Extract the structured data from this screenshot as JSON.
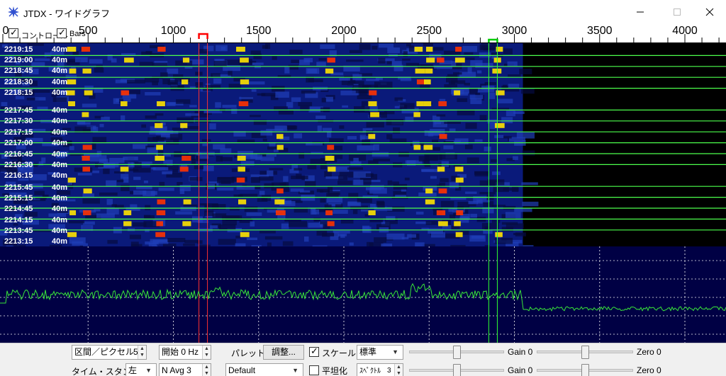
{
  "window": {
    "title": "JTDX - ワイドグラフ",
    "icon": "jtdx-star-icon",
    "minimize_icon": "minimize-icon",
    "maximize_icon": "maximize-icon",
    "close_icon": "close-icon"
  },
  "ruler": {
    "ticks": [
      "0",
      "500",
      "1000",
      "1500",
      "2000",
      "2500",
      "3000",
      "3500",
      "4000"
    ],
    "control_checkbox_label": "コントロール",
    "bars_checkbox_label": "Bars",
    "control_checked": true,
    "bars_checked": true,
    "rx_marker_color": "#ff0000",
    "tx_marker_color": "#00cc00"
  },
  "waterfall": {
    "rows": [
      {
        "time": "2219:15",
        "band": "40m"
      },
      {
        "time": "2219:00",
        "band": "40m"
      },
      {
        "time": "2218:45",
        "band": "40m"
      },
      {
        "time": "2218:30",
        "band": "40m"
      },
      {
        "time": "2218:15",
        "band": "40m"
      },
      {
        "time": "2217:45",
        "band": "40m"
      },
      {
        "time": "2217:30",
        "band": "40m"
      },
      {
        "time": "2217:15",
        "band": "40m"
      },
      {
        "time": "2217:00",
        "band": "40m"
      },
      {
        "time": "2216:45",
        "band": "40m"
      },
      {
        "time": "2216:30",
        "band": "40m"
      },
      {
        "time": "2216:15",
        "band": "40m"
      },
      {
        "time": "2215:45",
        "band": "40m"
      },
      {
        "time": "2215:15",
        "band": "40m"
      },
      {
        "time": "2214:45",
        "band": "40m"
      },
      {
        "time": "2214:15",
        "band": "40m"
      },
      {
        "time": "2213:45",
        "band": "40m"
      },
      {
        "time": "2213:15",
        "band": "40m"
      }
    ],
    "colors": {
      "background": "#0a1a7a",
      "signal_hot": "#ff3300",
      "signal_warm": "#ffe400",
      "separator": "#4cff4c"
    }
  },
  "spectrum": {
    "colors": {
      "background": "#000044",
      "trace": "#39e639",
      "grid": "#ffffff"
    }
  },
  "controls": {
    "interval_pixel": "区間／ピクセル",
    "interval_pixel_value": "5",
    "start_label": "開始 0 Hz",
    "palette_label": "パレット",
    "adjust_button": "調整...",
    "scale_label": "スケール",
    "scale_checked": true,
    "standard_select": "標準",
    "gain_top": "Gain 0",
    "zero_top": "Zero 0",
    "timestamp_label": "タイム・スタンプ",
    "timestamp_select": "左",
    "navg_label": "N Avg 3",
    "default_select": "Default",
    "flatten_label": "平坦化",
    "flatten_checked": false,
    "spectrum_select": "ｽﾍﾟｸﾄﾙ",
    "spectrum_spin": "3",
    "gain_bottom": "Gain 0",
    "zero_bottom": "Zero 0"
  }
}
